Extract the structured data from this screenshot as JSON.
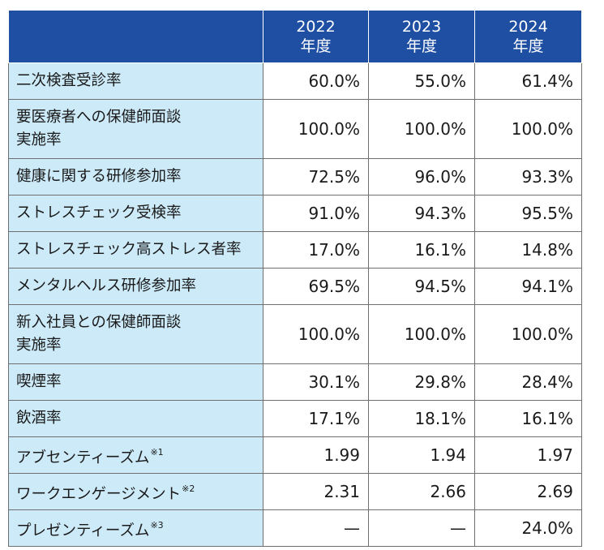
{
  "header": {
    "years": [
      {
        "year": "2022",
        "unit": "年度"
      },
      {
        "year": "2023",
        "unit": "年度"
      },
      {
        "year": "2024",
        "unit": "年度"
      }
    ]
  },
  "rows": [
    {
      "label": "二次検査受診率",
      "values": [
        "60.0%",
        "55.0%",
        "61.4%"
      ]
    },
    {
      "label_line1": "要医療者への保健師面談",
      "label_line2": "実施率",
      "values": [
        "100.0%",
        "100.0%",
        "100.0%"
      ]
    },
    {
      "label": "健康に関する研修参加率",
      "values": [
        "72.5%",
        "96.0%",
        "93.3%"
      ]
    },
    {
      "label": "ストレスチェック受検率",
      "values": [
        "91.0%",
        "94.3%",
        "95.5%"
      ]
    },
    {
      "label": "ストレスチェック高ストレス者率",
      "values": [
        "17.0%",
        "16.1%",
        "14.8%"
      ]
    },
    {
      "label": "メンタルヘルス研修参加率",
      "values": [
        "69.5%",
        "94.5%",
        "94.1%"
      ]
    },
    {
      "label_line1": "新入社員との保健師面談",
      "label_line2": "実施率",
      "values": [
        "100.0%",
        "100.0%",
        "100.0%"
      ]
    },
    {
      "label": "喫煙率",
      "values": [
        "30.1%",
        "29.8%",
        "28.4%"
      ]
    },
    {
      "label": "飲酒率",
      "values": [
        "17.1%",
        "18.1%",
        "16.1%"
      ]
    },
    {
      "label": "アブセンティーズム",
      "note": "※1",
      "values": [
        "1.99",
        "1.94",
        "1.97"
      ]
    },
    {
      "label": "ワークエンゲージメント",
      "note": "※2",
      "values": [
        "2.31",
        "2.66",
        "2.69"
      ]
    },
    {
      "label": "プレゼンティーズム",
      "note": "※3",
      "values": [
        "—",
        "—",
        "24.0%"
      ]
    }
  ]
}
